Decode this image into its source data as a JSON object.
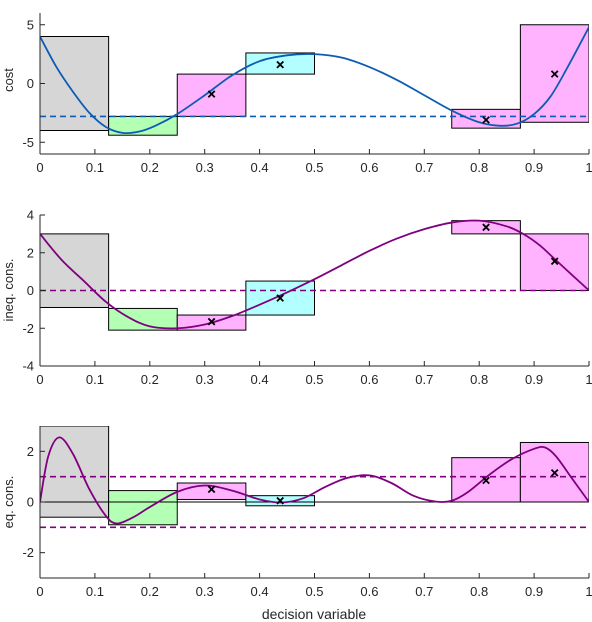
{
  "colors": {
    "gray": "#d6d6d6",
    "green": "#b3ffb3",
    "magenta": "#ffb3ff",
    "cyan": "#b3ffff",
    "blue_curve": "#0c5cb4",
    "purple_curve": "#800080",
    "box_edge": "#000000",
    "axis": "#262626"
  },
  "chart_data": [
    {
      "type": "line",
      "ylabel": "cost",
      "xlim": [
        0,
        1
      ],
      "ylim": [
        -6,
        6
      ],
      "xticks": [
        0,
        0.1,
        0.2,
        0.3,
        0.4,
        0.5,
        0.6,
        0.7,
        0.8,
        0.9,
        1
      ],
      "xtick_labels": [
        "0",
        "0.1",
        "0.2",
        "0.3",
        "0.4",
        "0.5",
        "0.6",
        "0.7",
        "0.8",
        "0.9",
        "1"
      ],
      "yticks": [
        -5,
        0,
        5
      ],
      "ytick_labels": [
        "-5",
        "0",
        "5"
      ],
      "curve_color": "#0c5cb4",
      "curve": {
        "x": [
          0,
          0.03,
          0.06,
          0.09,
          0.12,
          0.15,
          0.18,
          0.21,
          0.25,
          0.3,
          0.35,
          0.4,
          0.45,
          0.5,
          0.55,
          0.6,
          0.65,
          0.7,
          0.75,
          0.8,
          0.84,
          0.87,
          0.9,
          0.93,
          0.96,
          1
        ],
        "y": [
          4,
          1.4,
          -0.7,
          -2.5,
          -3.7,
          -4.2,
          -4.1,
          -3.6,
          -2.6,
          -1,
          0.7,
          1.9,
          2.4,
          2.5,
          2.2,
          1.4,
          0.3,
          -1,
          -2.3,
          -3.3,
          -3.6,
          -3.4,
          -2.6,
          -1.1,
          1.3,
          4.8
        ]
      },
      "thresholds": [
        {
          "y": -2.8,
          "color": "#0c5cb4"
        }
      ],
      "boxes": [
        {
          "x0": 0,
          "x1": 0.125,
          "y0": -4,
          "y1": 4,
          "fill": "#d6d6d6"
        },
        {
          "x0": 0.125,
          "x1": 0.25,
          "y0": -4.4,
          "y1": -2.8,
          "fill": "#b3ffb3"
        },
        {
          "x0": 0.25,
          "x1": 0.375,
          "y0": -2.8,
          "y1": 0.8,
          "fill": "#ffb3ff"
        },
        {
          "x0": 0.375,
          "x1": 0.5,
          "y0": 0.8,
          "y1": 2.6,
          "fill": "#b3ffff"
        },
        {
          "x0": 0.75,
          "x1": 0.875,
          "y0": -3.8,
          "y1": -2.2,
          "fill": "#ffb3ff"
        },
        {
          "x0": 0.875,
          "x1": 1,
          "y0": -3.3,
          "y1": 5,
          "fill": "#ffb3ff"
        }
      ],
      "markers": [
        {
          "x": 0.3125,
          "y": -0.9
        },
        {
          "x": 0.4375,
          "y": 1.6
        },
        {
          "x": 0.8125,
          "y": -3.1
        },
        {
          "x": 0.9375,
          "y": 0.8
        }
      ]
    },
    {
      "type": "line",
      "ylabel": "ineq. cons.",
      "xlim": [
        0,
        1
      ],
      "ylim": [
        -4,
        4
      ],
      "xticks": [
        0,
        0.1,
        0.2,
        0.3,
        0.4,
        0.5,
        0.6,
        0.7,
        0.8,
        0.9,
        1
      ],
      "xtick_labels": [
        "0",
        "0.1",
        "0.2",
        "0.3",
        "0.4",
        "0.5",
        "0.6",
        "0.7",
        "0.8",
        "0.9",
        "1"
      ],
      "yticks": [
        -4,
        -2,
        0,
        2,
        4
      ],
      "ytick_labels": [
        "-4",
        "-2",
        "0",
        "2",
        "4"
      ],
      "curve_color": "#800080",
      "curve": {
        "x": [
          0,
          0.04,
          0.08,
          0.12,
          0.16,
          0.2,
          0.25,
          0.3,
          0.35,
          0.4,
          0.45,
          0.5,
          0.55,
          0.6,
          0.65,
          0.7,
          0.75,
          0.8,
          0.85,
          0.88,
          0.91,
          0.94,
          0.97,
          1
        ],
        "y": [
          3,
          1.6,
          0.5,
          -0.6,
          -1.4,
          -1.9,
          -2,
          -1.8,
          -1.35,
          -0.75,
          -0.1,
          0.6,
          1.35,
          2.1,
          2.75,
          3.25,
          3.6,
          3.7,
          3.4,
          3,
          2.4,
          1.6,
          0.8,
          0
        ]
      },
      "thresholds": [
        {
          "y": 0,
          "color": "#800080"
        }
      ],
      "boxes": [
        {
          "x0": 0,
          "x1": 0.125,
          "y0": -0.9,
          "y1": 3,
          "fill": "#d6d6d6"
        },
        {
          "x0": 0.125,
          "x1": 0.25,
          "y0": -2.1,
          "y1": -0.95,
          "fill": "#b3ffb3"
        },
        {
          "x0": 0.25,
          "x1": 0.375,
          "y0": -2.1,
          "y1": -1.3,
          "fill": "#ffb3ff"
        },
        {
          "x0": 0.375,
          "x1": 0.5,
          "y0": -1.3,
          "y1": 0.5,
          "fill": "#b3ffff"
        },
        {
          "x0": 0.75,
          "x1": 0.875,
          "y0": 3,
          "y1": 3.7,
          "fill": "#ffb3ff"
        },
        {
          "x0": 0.875,
          "x1": 1,
          "y0": 0,
          "y1": 3,
          "fill": "#ffb3ff"
        }
      ],
      "markers": [
        {
          "x": 0.3125,
          "y": -1.65
        },
        {
          "x": 0.4375,
          "y": -0.4
        },
        {
          "x": 0.8125,
          "y": 3.35
        },
        {
          "x": 0.9375,
          "y": 1.55
        }
      ]
    },
    {
      "type": "line",
      "ylabel": "eq. cons.",
      "xlabel": "decision variable",
      "xlim": [
        0,
        1
      ],
      "ylim": [
        -3,
        3
      ],
      "xticks": [
        0,
        0.1,
        0.2,
        0.3,
        0.4,
        0.5,
        0.6,
        0.7,
        0.8,
        0.9,
        1
      ],
      "xtick_labels": [
        "0",
        "0.1",
        "0.2",
        "0.3",
        "0.4",
        "0.5",
        "0.6",
        "0.7",
        "0.8",
        "0.9",
        "1"
      ],
      "yticks": [
        -2,
        0,
        2
      ],
      "ytick_labels": [
        "-2",
        "0",
        "2"
      ],
      "curve_color": "#800080",
      "curve": {
        "x": [
          0,
          0.015,
          0.035,
          0.06,
          0.09,
          0.12,
          0.14,
          0.17,
          0.2,
          0.25,
          0.3,
          0.35,
          0.4,
          0.44,
          0.48,
          0.52,
          0.56,
          0.6,
          0.64,
          0.68,
          0.72,
          0.75,
          0.78,
          0.82,
          0.86,
          0.9,
          0.92,
          0.94,
          0.97,
          1
        ],
        "y": [
          0,
          1.8,
          2.55,
          1.9,
          0.5,
          -0.55,
          -0.85,
          -0.6,
          -0.2,
          0.4,
          0.65,
          0.45,
          0.1,
          -0.02,
          0.15,
          0.6,
          0.95,
          1.05,
          0.75,
          0.25,
          0.02,
          0.05,
          0.4,
          1.1,
          1.7,
          2.1,
          2.15,
          1.8,
          0.9,
          0
        ]
      },
      "thresholds": [
        {
          "y": 1,
          "color": "#800080"
        },
        {
          "y": -1,
          "color": "#800080"
        }
      ],
      "boxes": [
        {
          "x0": 0,
          "x1": 0.125,
          "y0": -0.6,
          "y1": 3,
          "fill": "#d6d6d6"
        },
        {
          "x0": 0.125,
          "x1": 0.25,
          "y0": -0.9,
          "y1": 0.45,
          "fill": "#b3ffb3"
        },
        {
          "x0": 0.25,
          "x1": 0.375,
          "y0": 0.1,
          "y1": 0.75,
          "fill": "#ffb3ff"
        },
        {
          "x0": 0.375,
          "x1": 0.5,
          "y0": -0.15,
          "y1": 0.25,
          "fill": "#b3ffff"
        },
        {
          "x0": 0.75,
          "x1": 0.875,
          "y0": 0,
          "y1": 1.75,
          "fill": "#ffb3ff"
        },
        {
          "x0": 0.875,
          "x1": 1,
          "y0": 0,
          "y1": 2.35,
          "fill": "#ffb3ff"
        }
      ],
      "markers": [
        {
          "x": 0.3125,
          "y": 0.5
        },
        {
          "x": 0.4375,
          "y": 0.05
        },
        {
          "x": 0.8125,
          "y": 0.85
        },
        {
          "x": 0.9375,
          "y": 1.15
        }
      ]
    }
  ]
}
